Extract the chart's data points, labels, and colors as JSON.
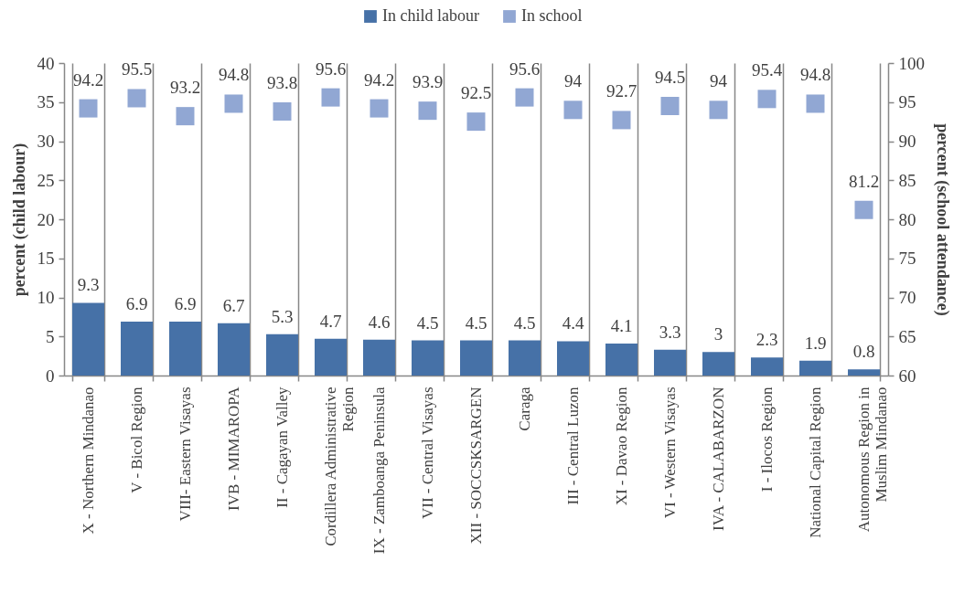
{
  "chart_data": {
    "type": "bar",
    "categories": [
      "X - Northern Mindanao",
      "V - Bicol Region",
      "VIII- Eastern Visayas",
      "IVB - MIMAROPA",
      "II - Cagayan Valley",
      "Cordillera Administrative Region",
      "IX - Zamboanga Peninsula",
      "VII - Central Visayas",
      "XII - SOCCSKSARGEN",
      "Caraga",
      "III - Central Luzon",
      "XI - Davao Region",
      "VI - Western Visayas",
      "IVA - CALABARZON",
      "I - Ilocos Region",
      "National Capital Region",
      "Autonomous Region in Muslim Mindanao"
    ],
    "series": [
      {
        "name": "In child labour",
        "color": "#4671a7",
        "values": [
          9.3,
          6.9,
          6.9,
          6.7,
          5.3,
          4.7,
          4.6,
          4.5,
          4.5,
          4.5,
          4.4,
          4.1,
          3.3,
          3,
          2.3,
          1.9,
          0.8
        ]
      },
      {
        "name": "In school",
        "type": "scatter",
        "axis": "y2",
        "color": "#91a7d3",
        "values": [
          94.2,
          95.5,
          93.2,
          94.8,
          93.8,
          95.6,
          94.2,
          93.9,
          92.5,
          95.6,
          94,
          92.7,
          94.5,
          94,
          95.4,
          94.8,
          81.2
        ]
      }
    ],
    "ylabel": "percent (child labour)",
    "y2label": "percent (school attendance)",
    "ylim": [
      0,
      40
    ],
    "yticks": [
      0,
      5,
      10,
      15,
      20,
      25,
      30,
      35,
      40
    ],
    "y2lim": [
      60,
      100
    ],
    "y2ticks": [
      60,
      65,
      70,
      75,
      80,
      85,
      90,
      95,
      100
    ],
    "legend": "top",
    "marker": "square",
    "data_labels": true,
    "grid": "x"
  }
}
